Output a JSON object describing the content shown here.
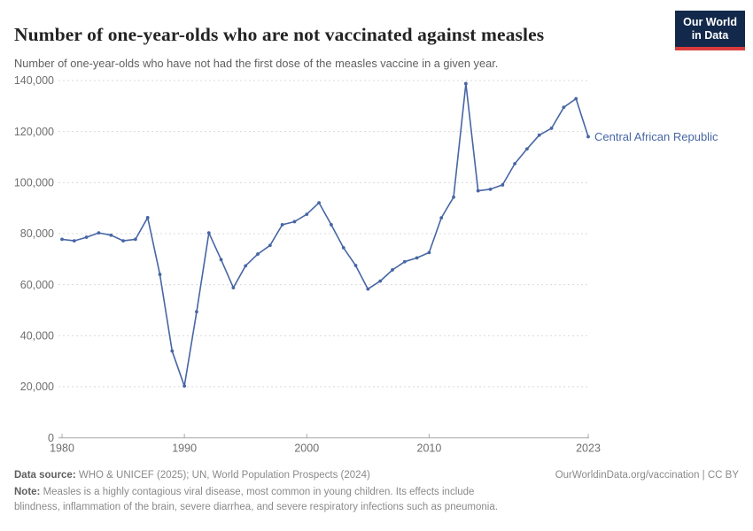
{
  "header": {
    "title": "Number of one-year-olds who are not vaccinated against measles",
    "subtitle": "Number of one-year-olds who have not had the first dose of the measles vaccine in a given year.",
    "logo_line1": "Our World",
    "logo_line2": "in Data"
  },
  "chart_data": {
    "type": "line",
    "title": "Number of one-year-olds who are not vaccinated against measles",
    "entity": "Central African Republic",
    "end_label": "Central African Republic",
    "line_color": "#4766A4",
    "grid": "horizontal-dashed",
    "xlim": [
      1980,
      2023
    ],
    "ylim": [
      0,
      140000
    ],
    "x_ticks": [
      1980,
      1990,
      2000,
      2010,
      2023
    ],
    "x_tick_labels": [
      "1980",
      "1990",
      "2000",
      "2010",
      "2023"
    ],
    "y_ticks": [
      0,
      20000,
      40000,
      60000,
      80000,
      100000,
      120000,
      140000
    ],
    "y_tick_labels": [
      "0",
      "20,000",
      "40,000",
      "60,000",
      "80,000",
      "100,000",
      "120,000",
      "140,000"
    ],
    "series": [
      {
        "name": "Central African Republic",
        "x": [
          1980,
          1981,
          1982,
          1983,
          1984,
          1985,
          1986,
          1987,
          1988,
          1989,
          1990,
          1991,
          1992,
          1993,
          1994,
          1995,
          1996,
          1997,
          1998,
          1999,
          2000,
          2001,
          2002,
          2003,
          2004,
          2005,
          2006,
          2007,
          2008,
          2009,
          2010,
          2011,
          2012,
          2013,
          2014,
          2015,
          2016,
          2017,
          2018,
          2019,
          2020,
          2021,
          2022,
          2023
        ],
        "values": [
          77800,
          77200,
          78600,
          80300,
          79400,
          77200,
          77800,
          86300,
          64000,
          34000,
          20300,
          49400,
          80300,
          69800,
          58800,
          67400,
          72000,
          75400,
          83500,
          84700,
          87600,
          92100,
          83500,
          74500,
          67500,
          58300,
          61400,
          65800,
          69000,
          70500,
          72600,
          86200,
          94300,
          138800,
          96800,
          97400,
          99100,
          107400,
          113200,
          118600,
          121300,
          129500,
          132900,
          118000
        ]
      }
    ]
  },
  "footer": {
    "datasource_label": "Data source:",
    "datasource_text": " WHO & UNICEF (2025); UN, World Population Prospects (2024)",
    "license_text": "OurWorldinData.org/vaccination | CC BY",
    "note_label": "Note:",
    "note_text": " Measles is a highly contagious viral disease, most common in young children. Its effects include blindness, inflammation of the brain, severe diarrhea, and severe respiratory infections such as pneumonia."
  },
  "colors": {
    "line": "#4766A4",
    "gridline": "#DADADA",
    "axis": "#A8A8A8",
    "tick_text": "#6E6E6E",
    "logo_bg": "#13294B",
    "logo_red": "#D93A3B"
  }
}
